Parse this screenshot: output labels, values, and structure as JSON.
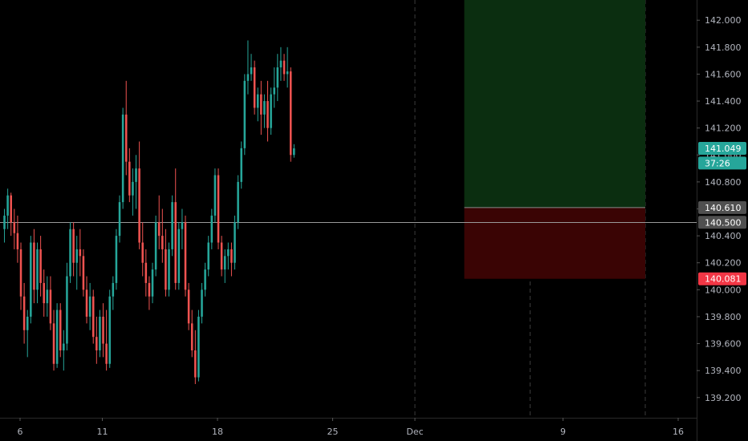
{
  "chart_data": {
    "type": "candlestick",
    "y_axis": {
      "range": [
        139.05,
        142.15
      ],
      "ticks": [
        "139.200",
        "139.400",
        "139.600",
        "139.800",
        "140.000",
        "140.200",
        "140.400",
        "140.600",
        "140.800",
        "141.000",
        "141.200",
        "141.400",
        "141.600",
        "141.800",
        "142.000"
      ]
    },
    "x_axis": {
      "ticks": [
        {
          "label": "6",
          "day": 6
        },
        {
          "label": "11",
          "day": 11
        },
        {
          "label": "18",
          "day": 18
        },
        {
          "label": "25",
          "day": 25
        },
        {
          "label": "Dec",
          "day": 30
        },
        {
          "label": "9",
          "day": 39
        },
        {
          "label": "16",
          "day": 46
        }
      ],
      "vertical_gridlines_at_days": [
        30,
        37,
        44
      ]
    },
    "horizontal_line": {
      "price": 140.5
    },
    "long_position": {
      "start_day": 33,
      "end_day": 44,
      "entry": 140.61,
      "target": 142.15,
      "stop": 140.081,
      "profit_color": "#0b2e10",
      "loss_color": "#3a0404"
    },
    "price_labels": [
      {
        "name": "current-price-label",
        "value": "141.049",
        "price": 141.049,
        "bg": "#26a69a",
        "fg": "#ffffff"
      },
      {
        "name": "countdown-label",
        "value": "37:26",
        "price": 140.94,
        "bg": "#26a69a",
        "fg": "#ffffff"
      },
      {
        "name": "entry-price-label",
        "value": "140.610",
        "price": 140.61,
        "bg": "#505050",
        "fg": "#ffffff"
      },
      {
        "name": "line-price-label",
        "value": "140.500",
        "price": 140.5,
        "bg": "#505050",
        "fg": "#ffffff"
      },
      {
        "name": "stop-price-label",
        "value": "140.081",
        "price": 140.081,
        "bg": "#f23645",
        "fg": "#ffffff"
      }
    ],
    "colors": {
      "up": "#26a69a",
      "down": "#ef5350",
      "grid": "#3a3a3a",
      "axis_text": "#b2b5be"
    },
    "series_start_day": 5.05,
    "bars_per_day": 5,
    "candles": [
      [
        140.45,
        140.6,
        140.35,
        140.55
      ],
      [
        140.55,
        140.75,
        140.45,
        140.7
      ],
      [
        140.7,
        140.72,
        140.4,
        140.5
      ],
      [
        140.5,
        140.6,
        140.3,
        140.42
      ],
      [
        140.42,
        140.55,
        140.2,
        140.3
      ],
      [
        140.3,
        140.35,
        139.85,
        139.95
      ],
      [
        139.95,
        140.05,
        139.6,
        139.7
      ],
      [
        139.7,
        139.85,
        139.5,
        139.8
      ],
      [
        139.8,
        140.4,
        139.75,
        140.35
      ],
      [
        140.35,
        140.45,
        139.9,
        140.0
      ],
      [
        140.0,
        140.35,
        139.9,
        140.3
      ],
      [
        140.3,
        140.4,
        139.95,
        140.05
      ],
      [
        140.05,
        140.15,
        139.8,
        139.9
      ],
      [
        139.9,
        140.1,
        139.8,
        140.0
      ],
      [
        140.0,
        140.1,
        139.7,
        139.75
      ],
      [
        139.75,
        139.85,
        139.4,
        139.45
      ],
      [
        139.45,
        139.9,
        139.42,
        139.85
      ],
      [
        139.85,
        139.9,
        139.5,
        139.55
      ],
      [
        139.55,
        139.7,
        139.4,
        139.6
      ],
      [
        139.6,
        140.2,
        139.55,
        140.1
      ],
      [
        140.1,
        140.5,
        140.05,
        140.45
      ],
      [
        140.45,
        140.5,
        140.1,
        140.2
      ],
      [
        140.2,
        140.4,
        140.0,
        140.3
      ],
      [
        140.3,
        140.45,
        140.1,
        140.25
      ],
      [
        140.25,
        140.3,
        139.95,
        140.0
      ],
      [
        140.0,
        140.1,
        139.75,
        139.8
      ],
      [
        139.8,
        140.05,
        139.7,
        139.95
      ],
      [
        139.95,
        140.0,
        139.6,
        139.65
      ],
      [
        139.65,
        139.8,
        139.45,
        139.55
      ],
      [
        139.55,
        139.85,
        139.5,
        139.8
      ],
      [
        139.8,
        139.9,
        139.5,
        139.6
      ],
      [
        139.6,
        139.85,
        139.4,
        139.45
      ],
      [
        139.45,
        140.0,
        139.42,
        139.95
      ],
      [
        139.95,
        140.1,
        139.85,
        140.05
      ],
      [
        140.05,
        140.45,
        140.0,
        140.4
      ],
      [
        140.4,
        140.7,
        140.35,
        140.65
      ],
      [
        140.65,
        141.35,
        140.6,
        141.3
      ],
      [
        141.3,
        141.55,
        140.85,
        140.95
      ],
      [
        140.95,
        141.05,
        140.65,
        140.7
      ],
      [
        140.7,
        140.9,
        140.55,
        140.8
      ],
      [
        140.8,
        141.0,
        140.6,
        140.9
      ],
      [
        140.9,
        141.1,
        140.3,
        140.35
      ],
      [
        140.35,
        140.5,
        140.1,
        140.2
      ],
      [
        140.2,
        140.3,
        139.95,
        140.05
      ],
      [
        140.05,
        140.1,
        139.85,
        139.95
      ],
      [
        139.95,
        140.2,
        139.9,
        140.15
      ],
      [
        140.15,
        140.55,
        140.1,
        140.5
      ],
      [
        140.5,
        140.7,
        140.3,
        140.4
      ],
      [
        140.4,
        140.6,
        140.2,
        140.3
      ],
      [
        140.3,
        140.45,
        139.95,
        140.0
      ],
      [
        140.0,
        140.35,
        139.95,
        140.3
      ],
      [
        140.3,
        140.7,
        140.25,
        140.65
      ],
      [
        140.65,
        140.9,
        140.0,
        140.05
      ],
      [
        140.05,
        140.5,
        140.0,
        140.45
      ],
      [
        140.45,
        140.6,
        140.3,
        140.5
      ],
      [
        140.5,
        140.55,
        139.95,
        140.0
      ],
      [
        140.0,
        140.05,
        139.7,
        139.75
      ],
      [
        139.75,
        139.85,
        139.5,
        139.55
      ],
      [
        139.55,
        139.7,
        139.3,
        139.35
      ],
      [
        139.35,
        139.85,
        139.32,
        139.8
      ],
      [
        139.8,
        140.05,
        139.75,
        140.0
      ],
      [
        140.0,
        140.2,
        139.95,
        140.15
      ],
      [
        140.15,
        140.4,
        140.1,
        140.35
      ],
      [
        140.35,
        140.6,
        140.3,
        140.55
      ],
      [
        140.55,
        140.9,
        140.5,
        140.85
      ],
      [
        140.85,
        140.9,
        140.3,
        140.35
      ],
      [
        140.35,
        140.4,
        140.1,
        140.15
      ],
      [
        140.15,
        140.3,
        140.05,
        140.25
      ],
      [
        140.25,
        140.35,
        140.15,
        140.3
      ],
      [
        140.3,
        140.35,
        140.1,
        140.2
      ],
      [
        140.2,
        140.55,
        140.15,
        140.5
      ],
      [
        140.5,
        140.85,
        140.45,
        140.8
      ],
      [
        140.8,
        141.1,
        140.75,
        141.05
      ],
      [
        141.05,
        141.6,
        141.0,
        141.55
      ],
      [
        141.55,
        141.85,
        141.45,
        141.6
      ],
      [
        141.6,
        141.75,
        141.55,
        141.65
      ],
      [
        141.65,
        141.7,
        141.3,
        141.35
      ],
      [
        141.35,
        141.5,
        141.25,
        141.45
      ],
      [
        141.45,
        141.55,
        141.15,
        141.3
      ],
      [
        141.3,
        141.45,
        141.2,
        141.4
      ],
      [
        141.4,
        141.55,
        141.1,
        141.2
      ],
      [
        141.2,
        141.5,
        141.15,
        141.45
      ],
      [
        141.45,
        141.65,
        141.35,
        141.5
      ],
      [
        141.5,
        141.75,
        141.4,
        141.65
      ],
      [
        141.65,
        141.8,
        141.55,
        141.7
      ],
      [
        141.7,
        141.75,
        141.55,
        141.6
      ],
      [
        141.6,
        141.8,
        141.5,
        141.62
      ],
      [
        141.62,
        141.65,
        140.95,
        141.0
      ],
      [
        141.0,
        141.08,
        140.98,
        141.049
      ]
    ]
  }
}
